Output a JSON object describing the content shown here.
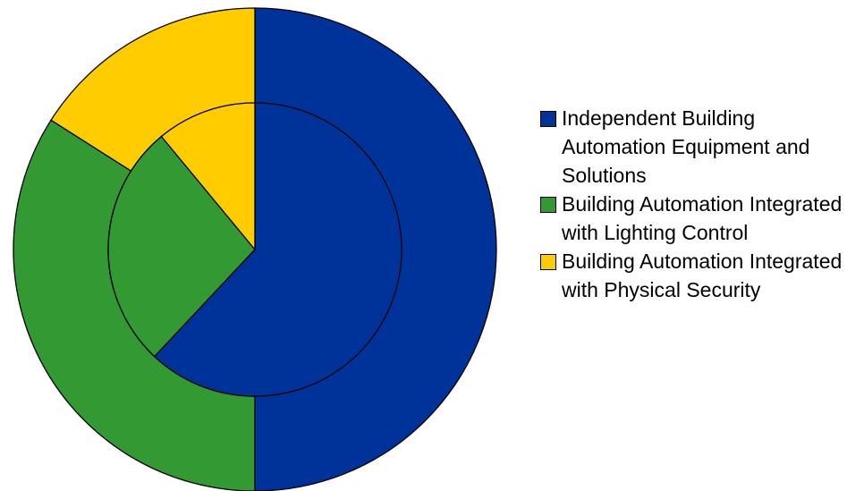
{
  "chart_data": {
    "type": "nested_pie",
    "categories": [
      "Independent Building Automation Equipment and Solutions",
      "Building Automation Integrated with Lighting Control",
      "Building Automation Integrated with Physical Security"
    ],
    "colors": [
      "#003399",
      "#339933",
      "#ffcc00"
    ],
    "series": [
      {
        "values": [
          50,
          34,
          16
        ]
      },
      {
        "values": [
          62,
          27,
          11
        ]
      }
    ],
    "legend": "right"
  }
}
